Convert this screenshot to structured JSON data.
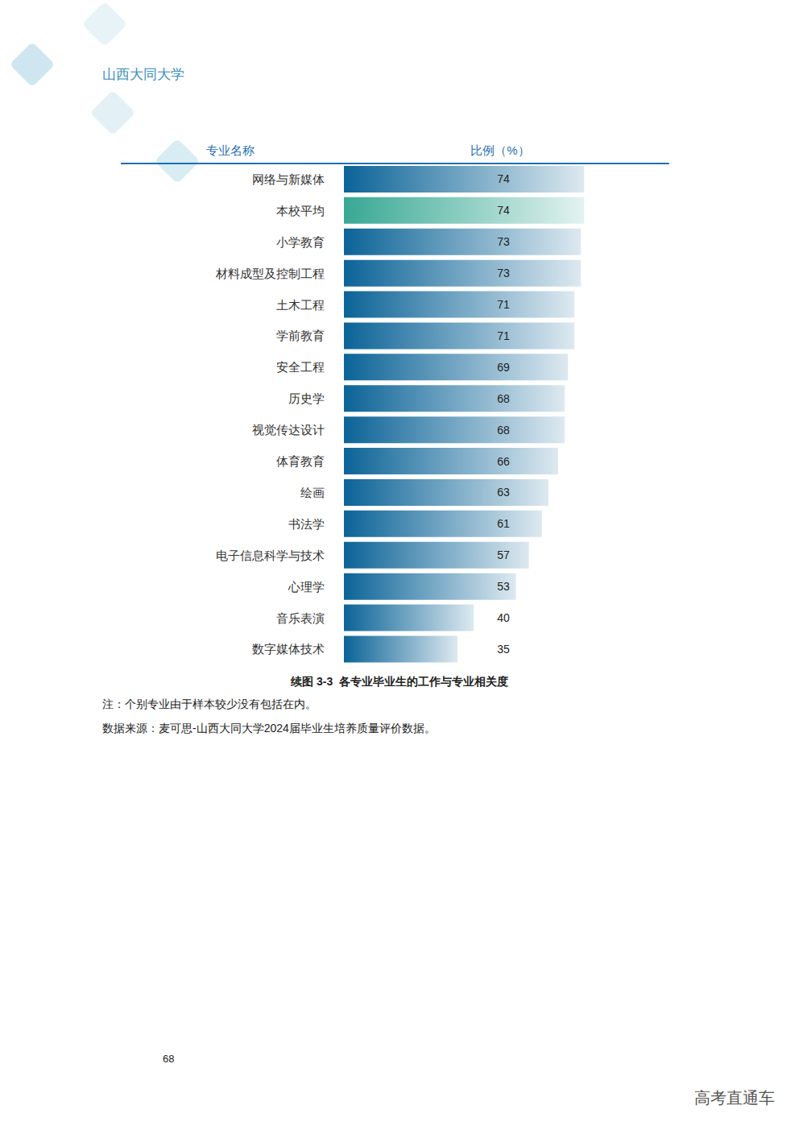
{
  "page": {
    "header": "山西大同大学",
    "notes": [
      "注：个别专业由于样本较少没有包括在内。",
      "数据来源：麦可思-山西大同大学2024届毕业生培养质量评价数据。"
    ],
    "page_number": 68,
    "watermark": "高考直通车"
  },
  "chart_data": {
    "type": "bar",
    "orientation": "horizontal",
    "title": "续图 3-3  各专业毕业生的工作与专业相关度",
    "y_label": "专业名称",
    "x_label": "比例（%）",
    "categories": [
      "网络与新媒体",
      "本校平均",
      "小学教育",
      "材料成型及控制工程",
      "土木工程",
      "学前教育",
      "安全工程",
      "历史学",
      "视觉传达设计",
      "体育教育",
      "绘画",
      "书法学",
      "电子信息科学与技术",
      "心理学",
      "音乐表演",
      "数字媒体技术"
    ],
    "values": [
      74,
      74,
      73,
      73,
      71,
      71,
      69,
      68,
      68,
      66,
      63,
      61,
      57,
      53,
      40,
      35
    ],
    "colors": [
      "#0b6397",
      "#38a893",
      "#0b6397",
      "#0b6397",
      "#0b6397",
      "#0b6397",
      "#0b6397",
      "#0b6397",
      "#0b6397",
      "#0b6397",
      "#0b6397",
      "#0b6397",
      "#0b6397",
      "#0b6397",
      "#0b6397",
      "#0b6397"
    ],
    "xlim": [
      0,
      100
    ],
    "tick_labels": false,
    "data_labels": true,
    "grid": false
  }
}
